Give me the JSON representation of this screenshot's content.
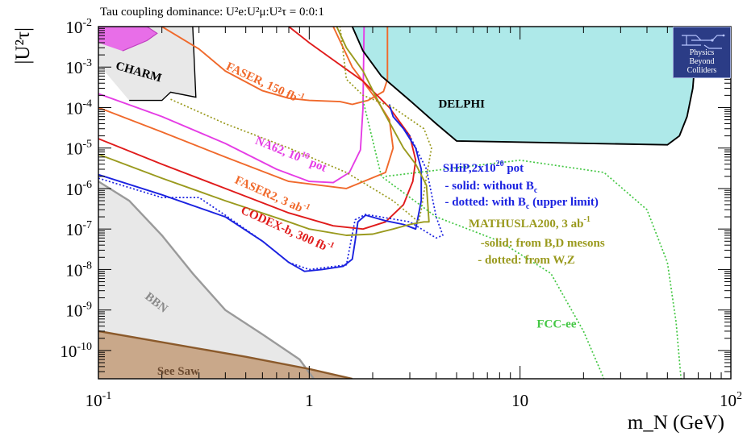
{
  "chart_data": {
    "type": "line",
    "title": "Tau coupling dominance: U²e:U²μ:U²τ = 0:0:1",
    "xlabel": "m_N (GeV)",
    "ylabel": "|U²τ|",
    "xscale": "log",
    "yscale": "log",
    "xlim": [
      0.1,
      100
    ],
    "ylim": [
      2e-11,
      0.01
    ],
    "x_tick_labels": [
      {
        "value": 0.1,
        "base": "10",
        "exp": "-1"
      },
      {
        "value": 1,
        "base": "1",
        "exp": ""
      },
      {
        "value": 10,
        "base": "10",
        "exp": ""
      },
      {
        "value": 100,
        "base": "10",
        "exp": "2"
      }
    ],
    "y_tick_labels": [
      {
        "value": 0.01,
        "base": "10",
        "exp": "-2"
      },
      {
        "value": 0.001,
        "base": "10",
        "exp": "-3"
      },
      {
        "value": 0.0001,
        "base": "10",
        "exp": "-4"
      },
      {
        "value": 1e-05,
        "base": "10",
        "exp": "-5"
      },
      {
        "value": 1e-06,
        "base": "10",
        "exp": "-6"
      },
      {
        "value": 1e-07,
        "base": "10",
        "exp": "-7"
      },
      {
        "value": 1e-08,
        "base": "10",
        "exp": "-8"
      },
      {
        "value": 1e-09,
        "base": "10",
        "exp": "-9"
      },
      {
        "value": 1e-10,
        "base": "10",
        "exp": "-10"
      }
    ],
    "regions": [
      {
        "name": "DELPHI",
        "color": "#aee9e9",
        "points": [
          [
            1.6,
            0.01
          ],
          [
            1.8,
            0.0025
          ],
          [
            2.2,
            0.0006
          ],
          [
            3,
            0.00015
          ],
          [
            4,
            4e-05
          ],
          [
            5,
            1.5e-05
          ],
          [
            50,
            1.2e-05
          ],
          [
            57,
            2e-05
          ],
          [
            62,
            6e-05
          ],
          [
            66,
            0.0003
          ],
          [
            68,
            0.002
          ],
          [
            70,
            0.01
          ]
        ]
      },
      {
        "name": "CHARM",
        "color": "#e8e8e8",
        "points": [
          [
            0.1,
            0.01
          ],
          [
            0.28,
            0.01
          ],
          [
            0.29,
            0.00018
          ],
          [
            0.22,
            0.00024
          ],
          [
            0.2,
            0.00015
          ],
          [
            0.14,
            0.00015
          ],
          [
            0.1,
            0.0012
          ]
        ]
      },
      {
        "name": "BBN",
        "color": "#e8e8e8",
        "points": [
          [
            0.1,
            1.5e-06
          ],
          [
            0.14,
            5e-07
          ],
          [
            0.2,
            7e-08
          ],
          [
            0.28,
            8e-09
          ],
          [
            0.4,
            1e-09
          ],
          [
            0.6,
            2.5e-10
          ],
          [
            0.9,
            6e-11
          ],
          [
            1.05,
            2e-11
          ],
          [
            0.1,
            2e-11
          ]
        ]
      },
      {
        "name": "See Saw",
        "color": "#c9a88a",
        "points": [
          [
            0.1,
            3e-10
          ],
          [
            0.5,
            7e-11
          ],
          [
            1.0,
            3.5e-11
          ],
          [
            1.6,
            2e-11
          ],
          [
            0.1,
            2e-11
          ]
        ]
      },
      {
        "name": "",
        "color": "#e86ee8",
        "points": [
          [
            0.1,
            0.01
          ],
          [
            0.17,
            0.01
          ],
          [
            0.19,
            0.0068
          ],
          [
            0.17,
            0.0045
          ],
          [
            0.13,
            0.0025
          ],
          [
            0.1,
            0.004
          ]
        ]
      }
    ],
    "series": [
      {
        "name": "FASER, 150 fb⁻¹",
        "color": "#f0692b",
        "style": "solid",
        "points": [
          [
            0.2,
            0.01
          ],
          [
            0.3,
            0.0028
          ],
          [
            0.4,
            0.0008
          ],
          [
            0.6,
            0.00026
          ],
          [
            0.8,
            0.00017
          ],
          [
            1.0,
            0.00015
          ],
          [
            1.4,
            0.00014
          ],
          [
            1.6,
            0.00012
          ],
          [
            1.9,
            0.00015
          ],
          [
            2.25,
            0.00025
          ],
          [
            2.35,
            0.0005
          ],
          [
            2.35,
            0.01
          ]
        ]
      },
      {
        "name": "NA62, 10¹⁸ pot",
        "color": "#e53ce5",
        "style": "solid",
        "points": [
          [
            0.1,
            0.00022
          ],
          [
            0.2,
            6e-05
          ],
          [
            0.4,
            1.3e-05
          ],
          [
            0.7,
            3e-06
          ],
          [
            1.0,
            1.5e-06
          ],
          [
            1.3,
            1.4e-06
          ],
          [
            1.55,
            2.5e-06
          ],
          [
            1.75,
            9e-06
          ],
          [
            1.8,
            0.0001
          ],
          [
            1.82,
            0.01
          ]
        ]
      },
      {
        "name": "FASER2, 3 ab⁻¹",
        "color": "#f0692b",
        "style": "solid",
        "points": [
          [
            0.1,
            0.0001
          ],
          [
            0.2,
            2.5e-05
          ],
          [
            0.4,
            6e-06
          ],
          [
            0.8,
            1.5e-06
          ],
          [
            1.5,
            1e-06
          ],
          [
            2.3,
            2.5e-06
          ],
          [
            2.5,
            1e-05
          ],
          [
            2.4,
            5e-05
          ],
          [
            2.1,
            0.00015
          ],
          [
            1.6,
            0.001
          ],
          [
            1.3,
            0.01
          ]
        ]
      },
      {
        "name": "CODEX-b, 300 fb⁻¹",
        "color": "#e01b1b",
        "style": "solid",
        "points": [
          [
            0.1,
            1.7e-05
          ],
          [
            0.2,
            4e-06
          ],
          [
            0.4,
            1e-06
          ],
          [
            0.8,
            2.5e-07
          ],
          [
            1.3,
            1.2e-07
          ],
          [
            1.8,
            1e-07
          ],
          [
            2.3,
            1.5e-07
          ],
          [
            2.8,
            4e-07
          ],
          [
            3.1,
            1.5e-06
          ],
          [
            3.2,
            5e-06
          ],
          [
            3.0,
            2e-05
          ],
          [
            2.4,
            0.0001
          ],
          [
            1.8,
            0.00045
          ],
          [
            1.3,
            0.0015
          ],
          [
            1.0,
            0.004
          ],
          [
            0.8,
            0.01
          ]
        ]
      },
      {
        "name": "SHiP, solid: without B_c",
        "color": "#1b22e0",
        "style": "solid",
        "points": [
          [
            0.1,
            2.2e-06
          ],
          [
            0.2,
            7e-07
          ],
          [
            0.4,
            2e-07
          ],
          [
            0.6,
            5e-08
          ],
          [
            0.8,
            1.5e-08
          ],
          [
            0.95,
            9e-09
          ],
          [
            1.15,
            1e-08
          ],
          [
            1.45,
            1.2e-08
          ],
          [
            1.6,
            1.8e-08
          ],
          [
            1.65,
            5e-08
          ],
          [
            1.7,
            1.5e-07
          ],
          [
            1.85,
            2.2e-07
          ],
          [
            2.3,
            1.6e-07
          ],
          [
            2.8,
            1.3e-07
          ],
          [
            3.2,
            1e-07
          ],
          [
            3.4,
            5e-07
          ],
          [
            3.4,
            3e-06
          ],
          [
            3.2,
            1e-05
          ],
          [
            2.8,
            3e-05
          ],
          [
            2.5,
            6e-05
          ],
          [
            2.4,
            0.00012
          ]
        ]
      },
      {
        "name": "SHiP, dotted: with B_c (upper limit)",
        "color": "#1b22e0",
        "style": "dotted",
        "points": [
          [
            0.1,
            1.8e-06
          ],
          [
            0.2,
            6e-07
          ],
          [
            0.3,
            6e-07
          ],
          [
            0.4,
            2.2e-07
          ],
          [
            0.6,
            5e-08
          ],
          [
            0.8,
            1.5e-08
          ],
          [
            1.0,
            1e-08
          ],
          [
            1.5,
            1.3e-08
          ],
          [
            1.65,
            1.7e-07
          ],
          [
            1.85,
            2.3e-07
          ],
          [
            3.0,
            1.5e-07
          ],
          [
            4.0,
            6e-08
          ],
          [
            4.3,
            7e-08
          ],
          [
            4.0,
            2e-07
          ],
          [
            3.6,
            3e-06
          ],
          [
            3.0,
            2e-05
          ],
          [
            2.5,
            6e-05
          ]
        ]
      },
      {
        "name": "MATHUSLA200, solid: from B,D mesons",
        "color": "#9a9a1e",
        "style": "solid",
        "points": [
          [
            0.1,
            7e-06
          ],
          [
            0.2,
            1.8e-06
          ],
          [
            0.4,
            5e-07
          ],
          [
            0.8,
            1.5e-07
          ],
          [
            1.0,
            1e-07
          ],
          [
            1.5,
            7e-08
          ],
          [
            2.0,
            7.5e-08
          ],
          [
            2.5,
            1e-07
          ],
          [
            3.0,
            1.3e-07
          ],
          [
            3.5,
            1.5e-07
          ],
          [
            3.7,
            1.5e-07
          ],
          [
            3.6,
            1.2e-06
          ],
          [
            3.2,
            4e-06
          ],
          [
            2.8,
            1e-05
          ],
          [
            2.2,
            0.0001
          ],
          [
            1.8,
            0.0008
          ],
          [
            1.5,
            0.003
          ],
          [
            1.35,
            0.01
          ]
        ]
      },
      {
        "name": "MATHUSLA200, dotted: from W,Z",
        "color": "#9a9a1e",
        "style": "dotted",
        "points": [
          [
            0.22,
            0.00016
          ],
          [
            0.4,
            4e-05
          ],
          [
            0.8,
            1e-05
          ],
          [
            1.5,
            2.5e-06
          ],
          [
            2.5,
            5e-07
          ],
          [
            3.3,
            1.5e-07
          ],
          [
            3.4,
            3e-07
          ],
          [
            3.6,
            2e-06
          ],
          [
            3.8,
            1e-05
          ],
          [
            3.5,
            3e-05
          ],
          [
            2.5,
            0.0001
          ],
          [
            1.8,
            0.0002
          ],
          [
            1.5,
            0.0005
          ],
          [
            1.4,
            0.01
          ]
        ]
      },
      {
        "name": "FCC-ee",
        "color": "#44c744",
        "style": "dotted",
        "points": [
          [
            1.8,
            0.00015
          ],
          [
            2.2,
            2e-06
          ],
          [
            4.0,
            2e-07
          ],
          [
            8.0,
            5e-08
          ],
          [
            14.0,
            8e-09
          ],
          [
            20.0,
            3e-10
          ],
          [
            25.0,
            2e-11
          ]
        ]
      },
      {
        "name": "FCC-ee upper",
        "color": "#44c744",
        "style": "dotted",
        "points": [
          [
            2.3,
            2e-06
          ],
          [
            10,
            5e-06
          ],
          [
            25,
            2.5e-06
          ],
          [
            40,
            3e-07
          ],
          [
            50,
            1.5e-08
          ],
          [
            55,
            5e-10
          ],
          [
            58,
            2e-11
          ]
        ]
      },
      {
        "name": "DELPHI boundary",
        "color": "#000000",
        "style": "solid",
        "points": [
          [
            1.6,
            0.01
          ],
          [
            1.8,
            0.0025
          ],
          [
            2.2,
            0.0006
          ],
          [
            3,
            0.00015
          ],
          [
            4,
            4e-05
          ],
          [
            5,
            1.5e-05
          ],
          [
            50,
            1.2e-05
          ],
          [
            57,
            2e-05
          ],
          [
            62,
            6e-05
          ],
          [
            66,
            0.0003
          ],
          [
            68,
            0.002
          ],
          [
            70,
            0.01
          ]
        ]
      }
    ],
    "labels": [
      {
        "id": "charm",
        "text": "CHARM",
        "color": "#000000",
        "x": 0.12,
        "y": 0.0009,
        "rotate": 16
      },
      {
        "id": "faser",
        "text": "FASER, 150 fb",
        "sup": "-1",
        "color": "#f0692b",
        "x": 0.4,
        "y": 0.0009,
        "rotate": 25
      },
      {
        "id": "delphi",
        "text": "DELPHI",
        "color": "#000000",
        "x": 4.1,
        "y": 0.0001,
        "rotate": 0
      },
      {
        "id": "na62",
        "text": "NA62, 10",
        "sup": "18",
        "after": " pot",
        "color": "#e53ce5",
        "x": 0.55,
        "y": 1.3e-05,
        "rotate": 22
      },
      {
        "id": "faser2",
        "text": "FASER2, 3 ab",
        "sup": "-1",
        "color": "#f0692b",
        "x": 0.44,
        "y": 1.4e-06,
        "rotate": 24
      },
      {
        "id": "codex",
        "text": "CODEX-b, 300 fb",
        "sup": "-1",
        "color": "#e01b1b",
        "x": 0.47,
        "y": 2.5e-07,
        "rotate": 24
      },
      {
        "id": "ship",
        "text": "SHiP,2x10",
        "sup": "20",
        "after": " pot",
        "color": "#1b22e0",
        "x": 4.3,
        "y": 2.6e-06,
        "rotate": 0
      },
      {
        "id": "ship-solid",
        "text": "- solid: without B",
        "sub": "c",
        "color": "#1b22e0",
        "x": 4.4,
        "y": 9.5e-07,
        "rotate": 0,
        "small": true
      },
      {
        "id": "ship-dotted",
        "text": "- dotted: with B",
        "sub": "c",
        "after": " (upper limit)",
        "color": "#1b22e0",
        "x": 4.4,
        "y": 3.8e-07,
        "rotate": 0,
        "small": true
      },
      {
        "id": "mathusla",
        "text": "MATHUSLA200, 3 ab",
        "sup": "-1",
        "color": "#9a9a1e",
        "x": 5.7,
        "y": 1.1e-07,
        "rotate": 0,
        "small": true
      },
      {
        "id": "mathusla-solid",
        "text": "-solid: from B,D mesons",
        "color": "#9a9a1e",
        "x": 6.5,
        "y": 3.7e-08,
        "rotate": 0,
        "small": true
      },
      {
        "id": "mathusla-dotted",
        "text": "- dotted: from W,Z",
        "color": "#9a9a1e",
        "x": 6.3,
        "y": 1.4e-08,
        "rotate": 0,
        "small": true
      },
      {
        "id": "fccee",
        "text": "FCC-ee",
        "color": "#44c744",
        "x": 12,
        "y": 3.7e-10,
        "rotate": 0,
        "small": true
      },
      {
        "id": "bbn",
        "text": "BBN",
        "color": "#8a8a8a",
        "x": 0.165,
        "y": 2e-09,
        "rotate": 38
      },
      {
        "id": "seesaw",
        "text": "See Saw",
        "color": "#6b4a30",
        "x": 0.19,
        "y": 2.5e-11,
        "rotate": 0
      }
    ],
    "grid": false,
    "legend": "none"
  },
  "logo": {
    "lines": [
      "Physics",
      "Beyond",
      "Colliders"
    ]
  }
}
